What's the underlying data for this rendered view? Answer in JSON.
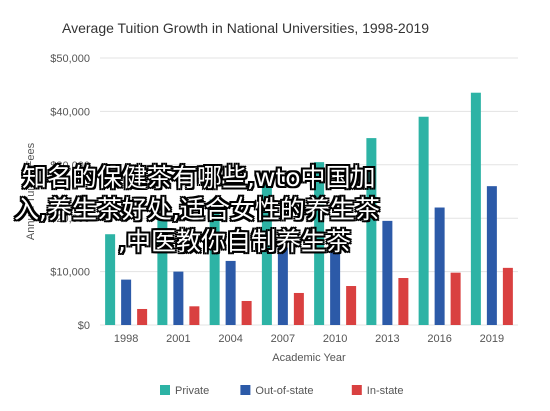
{
  "chart_data": {
    "type": "bar",
    "title": "Average Tuition Growth in National Universities, 1998-2019",
    "xlabel": "Academic Year",
    "ylabel": "Annual Tuition Fees",
    "categories": [
      "1998",
      "2001",
      "2004",
      "2007",
      "2010",
      "2013",
      "2016",
      "2019"
    ],
    "series": [
      {
        "name": "Private",
        "color": "#2db3a5",
        "values": [
          17000,
          20000,
          23500,
          27000,
          30500,
          35000,
          39000,
          43500
        ]
      },
      {
        "name": "Out-of-state",
        "color": "#2c5aa8",
        "values": [
          8500,
          10000,
          12000,
          14500,
          16500,
          19500,
          22000,
          26000
        ]
      },
      {
        "name": "In-state",
        "color": "#d94040",
        "values": [
          3000,
          3500,
          4500,
          6000,
          7300,
          8800,
          9800,
          10700
        ]
      }
    ],
    "ylim": [
      0,
      50000
    ],
    "yticks": [
      0,
      10000,
      20000,
      30000,
      40000,
      50000
    ],
    "ytick_labels": [
      "$0",
      "$10,000",
      "$20,000",
      "$30,000",
      "$40,000",
      "$50,000"
    ],
    "grid": true,
    "legend_position": "bottom"
  },
  "overlay": {
    "line1": "知名的保健茶有哪些,wto中国加",
    "line2": "入,养生茶好处,适合女性的养生茶",
    "line3": ",中医教你自制养生茶"
  }
}
